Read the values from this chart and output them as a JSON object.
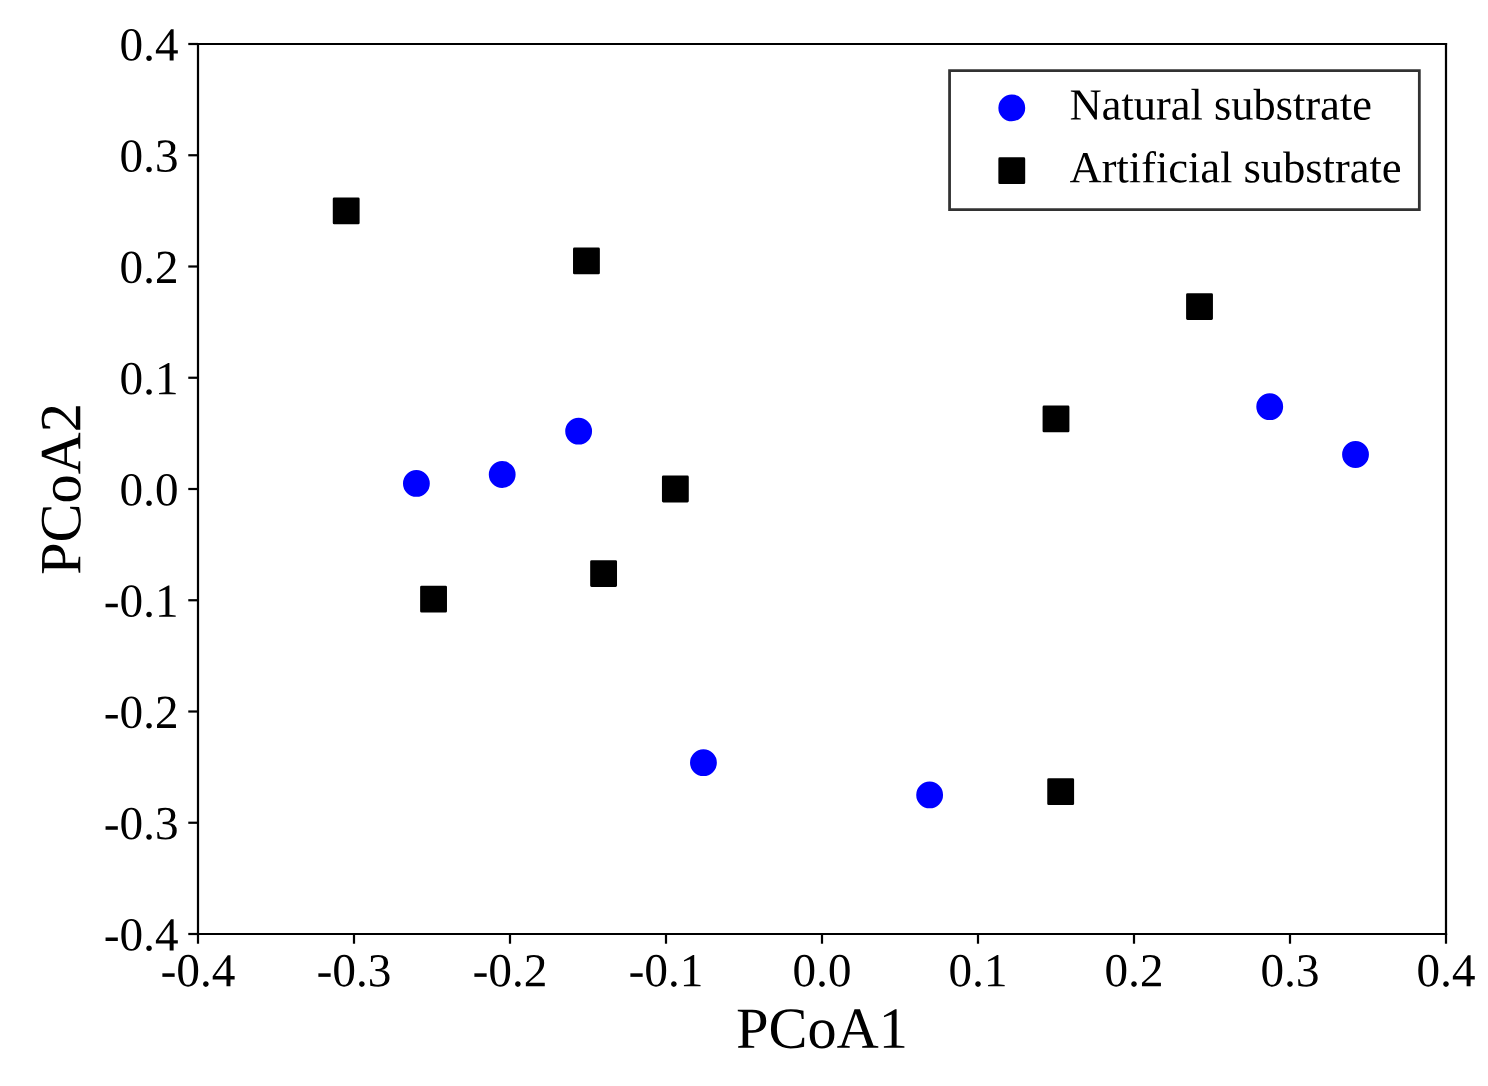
{
  "chart_data": {
    "type": "scatter",
    "xlabel": "PCoA1",
    "ylabel": "PCoA2",
    "xlim": [
      -0.4,
      0.4
    ],
    "ylim": [
      -0.4,
      0.4
    ],
    "xticks": [
      {
        "value": -0.4,
        "label": "-0.4"
      },
      {
        "value": -0.3,
        "label": "-0.3"
      },
      {
        "value": -0.2,
        "label": "-0.2"
      },
      {
        "value": -0.1,
        "label": "-0.1"
      },
      {
        "value": 0,
        "label": "0.0"
      },
      {
        "value": 0.1,
        "label": "0.1"
      },
      {
        "value": 0.2,
        "label": "0.2"
      },
      {
        "value": 0.3,
        "label": "0.3"
      },
      {
        "value": 0.4,
        "label": "0.4"
      }
    ],
    "yticks": [
      {
        "value": -0.4,
        "label": "-0.4"
      },
      {
        "value": -0.3,
        "label": "-0.3"
      },
      {
        "value": -0.2,
        "label": "-0.2"
      },
      {
        "value": -0.1,
        "label": "-0.1"
      },
      {
        "value": 0,
        "label": "0.0"
      },
      {
        "value": 0.1,
        "label": "0.1"
      },
      {
        "value": 0.2,
        "label": "0.2"
      },
      {
        "value": 0.3,
        "label": "0.3"
      },
      {
        "value": 0.4,
        "label": "0.4"
      }
    ],
    "grid": false,
    "legend": "top right",
    "series": [
      {
        "name": "Natural substrate",
        "color": "#0000ff",
        "marker": "circle",
        "x": [
          -0.26,
          -0.205,
          -0.156,
          -0.076,
          0.069,
          0.287,
          0.342
        ],
        "values": [
          0.005,
          0.013,
          0.052,
          -0.246,
          -0.275,
          0.074,
          0.031
        ]
      },
      {
        "name": "Artificial substrate",
        "color": "#000000",
        "marker": "square",
        "x": [
          -0.305,
          -0.151,
          -0.249,
          -0.14,
          -0.094,
          0.15,
          0.242,
          0.153
        ],
        "values": [
          0.25,
          0.205,
          -0.099,
          -0.076,
          0.0,
          0.063,
          0.164,
          -0.272
        ]
      }
    ]
  }
}
